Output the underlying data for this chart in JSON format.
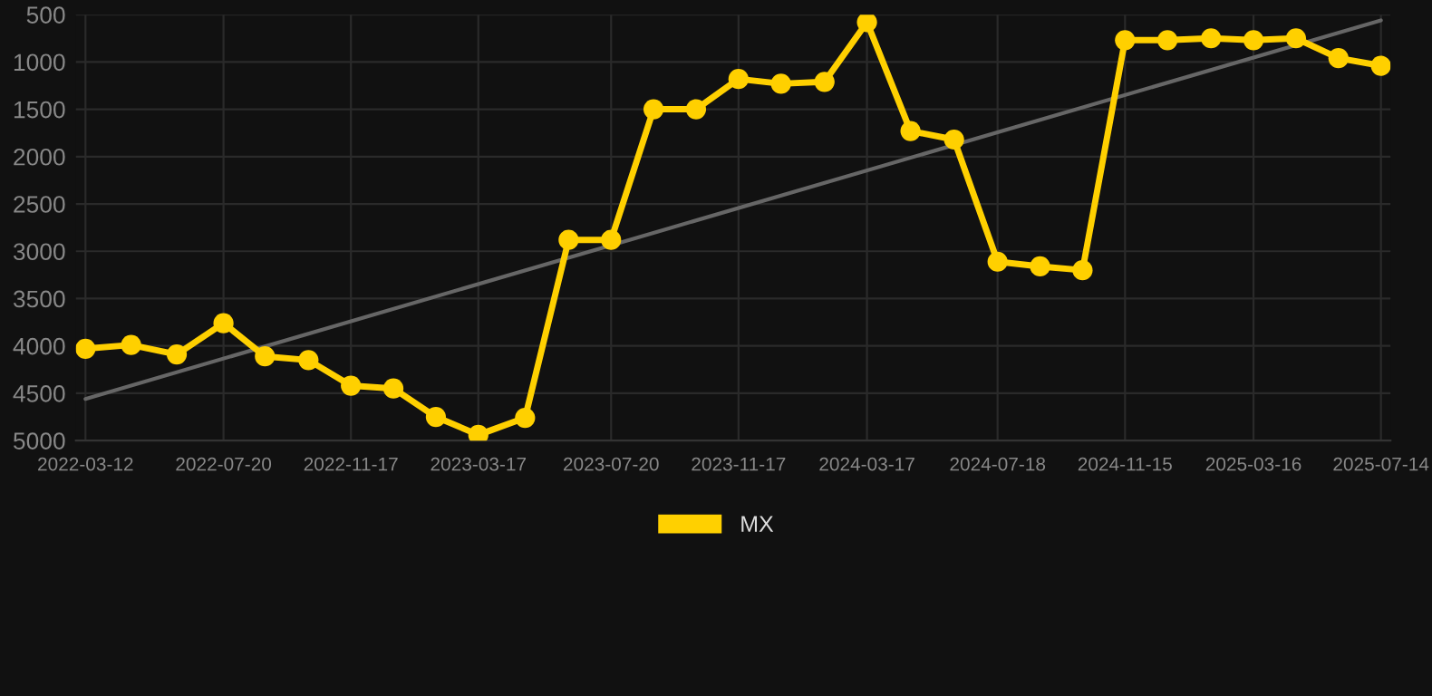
{
  "chart_data": {
    "type": "line",
    "x": [
      "2022-03-12",
      "2022-04-24",
      "2022-06-06",
      "2022-07-20",
      "2022-08-28",
      "2022-10-08",
      "2022-11-17",
      "2022-12-27",
      "2023-02-05",
      "2023-03-17",
      "2023-04-30",
      "2023-06-10",
      "2023-07-20",
      "2023-08-29",
      "2023-10-08",
      "2023-11-17",
      "2023-12-27",
      "2024-02-06",
      "2024-03-17",
      "2024-04-27",
      "2024-06-07",
      "2024-07-18",
      "2024-08-27",
      "2024-10-06",
      "2024-11-15",
      "2024-12-25",
      "2025-02-04",
      "2025-03-16",
      "2025-04-25",
      "2025-06-04",
      "2025-07-14"
    ],
    "series": [
      {
        "name": "MX",
        "color": "#ffd000",
        "marker": "circle",
        "values": [
          4030,
          3990,
          4090,
          3760,
          4110,
          4150,
          4420,
          4450,
          4750,
          4940,
          4760,
          2880,
          2880,
          1500,
          1500,
          1180,
          1230,
          1210,
          580,
          1730,
          1820,
          3110,
          3160,
          3200,
          770,
          770,
          750,
          770,
          750,
          960,
          1040
        ]
      },
      {
        "color": "#666666",
        "type": "line",
        "marker": "none",
        "x": [
          "2022-03-12",
          "2025-07-14"
        ],
        "values": [
          4560,
          560
        ]
      }
    ],
    "xlim": [
      "2022-03-03",
      "2025-07-23"
    ],
    "xticks": [
      "2022-03-12",
      "2022-07-20",
      "2022-11-17",
      "2023-03-17",
      "2023-07-20",
      "2023-11-17",
      "2024-03-17",
      "2024-07-18",
      "2024-11-15",
      "2025-03-16",
      "2025-07-14"
    ],
    "ylim": [
      5000,
      500
    ],
    "yticks": [
      500,
      1000,
      1500,
      2000,
      2500,
      3000,
      3500,
      4000,
      4500,
      5000
    ],
    "grid": true,
    "legend": "bottom",
    "line_style": "solid"
  }
}
